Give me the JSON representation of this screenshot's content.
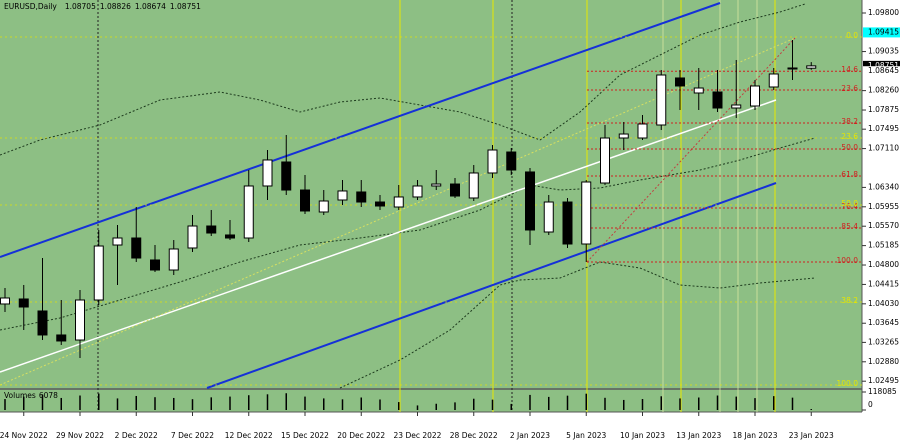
{
  "chart_data": {
    "type": "candlestick",
    "symbol": "EURUSD,Daily",
    "header_values": [
      1.08705,
      1.08826,
      1.08674,
      1.08751
    ],
    "categories": [
      null,
      "24 Nov 2022",
      null,
      null,
      "29 Nov 2022",
      null,
      null,
      "2 Dec 2022",
      null,
      null,
      "7 Dec 2022",
      null,
      null,
      "12 Dec 2022",
      null,
      null,
      "15 Dec 2022",
      null,
      null,
      "20 Dec 2022",
      null,
      null,
      "23 Dec 2022",
      null,
      null,
      "28 Dec 2022",
      null,
      null,
      "2 Jan 2023",
      null,
      null,
      "5 Jan 2023",
      null,
      null,
      "10 Jan 2023",
      null,
      null,
      "13 Jan 2023",
      null,
      null,
      "18 Jan 2023",
      null,
      null,
      "23 Jan 2023"
    ],
    "open": [
      1.04027,
      1.04126,
      1.03888,
      1.03412,
      1.03312,
      1.04106,
      1.05197,
      1.05336,
      1.049,
      1.04701,
      1.05138,
      1.05574,
      1.05396,
      1.05336,
      1.06368,
      1.06844,
      1.06288,
      1.05852,
      1.0609,
      1.06249,
      1.0605,
      1.05951,
      1.0615,
      1.06368,
      1.06407,
      1.0613,
      1.06626,
      1.07042,
      1.06646,
      1.05455,
      1.0605,
      1.05217,
      1.06427,
      1.0732,
      1.0732,
      1.07578,
      1.08511,
      1.08213,
      1.08233,
      1.07915,
      1.07955,
      1.08332,
      1.08689,
      1.08705
    ],
    "high": [
      1.04344,
      1.04404,
      1.04939,
      1.04106,
      1.04304,
      1.05495,
      1.05594,
      1.05951,
      1.05197,
      1.05296,
      1.05792,
      1.05892,
      1.05693,
      1.06685,
      1.07082,
      1.0738,
      1.06586,
      1.06288,
      1.06487,
      1.06487,
      1.06189,
      1.06388,
      1.06487,
      1.06685,
      1.06527,
      1.06784,
      1.07181,
      1.07122,
      1.06725,
      1.06189,
      1.0613,
      1.06487,
      1.07578,
      1.07638,
      1.07776,
      1.08669,
      1.08669,
      1.08709,
      1.08669,
      1.08868,
      1.08471,
      1.08709,
      1.09264,
      1.08826
    ],
    "low": [
      1.03868,
      1.03511,
      1.03312,
      1.03213,
      1.02955,
      1.04007,
      1.04404,
      1.0486,
      1.04662,
      1.04602,
      1.05058,
      1.05376,
      1.05296,
      1.05257,
      1.0609,
      1.06189,
      1.05812,
      1.05792,
      1.05991,
      1.05951,
      1.05892,
      1.05892,
      1.0609,
      1.06288,
      1.0613,
      1.0607,
      1.06527,
      1.06586,
      1.05197,
      1.05396,
      1.05138,
      1.0486,
      1.06388,
      1.07082,
      1.0728,
      1.07479,
      1.07876,
      1.07876,
      1.07836,
      1.07717,
      1.07876,
      1.08272,
      1.08471,
      1.08674
    ],
    "close": [
      1.04146,
      1.03967,
      1.03412,
      1.03293,
      1.04106,
      1.05177,
      1.05336,
      1.04939,
      1.04701,
      1.05118,
      1.05574,
      1.05435,
      1.05336,
      1.06368,
      1.06884,
      1.06288,
      1.05872,
      1.0607,
      1.06269,
      1.0605,
      1.05971,
      1.0615,
      1.06368,
      1.06407,
      1.06169,
      1.06626,
      1.07082,
      1.06685,
      1.05495,
      1.0605,
      1.05217,
      1.06447,
      1.0732,
      1.07399,
      1.07598,
      1.0857,
      1.08352,
      1.08312,
      1.07915,
      1.07975,
      1.08352,
      1.0859,
      1.08709,
      1.08751
    ],
    "up_color": "#ffffff",
    "down_color": "#000000",
    "ylim": [
      1.0236,
      1.10058
    ],
    "yticks": [
      {
        "value": 1.098,
        "label": "1.09800"
      },
      {
        "value": 1.09035,
        "label": "1.09035"
      },
      {
        "value": 1.0826,
        "label": "1.08260"
      },
      {
        "value": 1.07875,
        "label": "1.07875"
      },
      {
        "value": 1.07495,
        "label": "1.07495"
      },
      {
        "value": 1.0711,
        "label": "1.07110"
      },
      {
        "value": 1.0634,
        "label": "1.06340"
      },
      {
        "value": 1.05955,
        "label": "1.05955"
      },
      {
        "value": 1.0557,
        "label": "1.05570"
      },
      {
        "value": 1.05185,
        "label": "1.05185"
      },
      {
        "value": 1.048,
        "label": "1.04800"
      },
      {
        "value": 1.04415,
        "label": "1.04415"
      },
      {
        "value": 1.0403,
        "label": "1.04030"
      },
      {
        "value": 1.03645,
        "label": "1.03645"
      },
      {
        "value": 1.03265,
        "label": "1.03265"
      },
      {
        "value": 1.0288,
        "label": "1.02880"
      },
      {
        "value": 1.02495,
        "label": "1.02495"
      }
    ],
    "price_markers": [
      {
        "value": 1.09415,
        "label": "1.09415",
        "color": "#00ffff",
        "text_color": "#000000"
      },
      {
        "value": 1.08751,
        "label": "1.08751",
        "color": "#000000",
        "text_color": "#ffffff"
      },
      {
        "value": 1.08645,
        "label": "1.08645",
        "color": "#ffffff",
        "text_color": "#000000"
      }
    ],
    "fibo_levels": [
      {
        "label": "14.6",
        "value": 1.08645
      },
      {
        "label": "23.6",
        "value": 1.08272
      },
      {
        "label": "38.2",
        "value": 1.07618
      },
      {
        "label": "50.0",
        "value": 1.07102
      },
      {
        "label": "61.8",
        "value": 1.06566
      },
      {
        "label": "76.4",
        "value": 1.05931
      },
      {
        "label": "85.4",
        "value": 1.05535
      },
      {
        "label": "100.0",
        "value": 1.0486
      }
    ],
    "fibo_color": "#d02020",
    "guide_levels": [
      {
        "label": "0.0",
        "value": 1.09324
      },
      {
        "label": "23.6",
        "value": 1.0732
      },
      {
        "label": "50.0",
        "value": 1.05991
      },
      {
        "label": "38.2",
        "value": 1.04066
      },
      {
        "label": "100.0",
        "value": 1.0242
      }
    ],
    "guide_color": "#e6e600",
    "volume_title": "Volumes",
    "volumes": [
      72000,
      88000,
      101000,
      79000,
      95000,
      108000,
      76000,
      92000,
      84000,
      79000,
      71000,
      83000,
      88000,
      97000,
      103000,
      110000,
      88000,
      76000,
      70000,
      82000,
      69000,
      52000,
      30000,
      41000,
      50000,
      74000,
      68000,
      40000,
      99000,
      86000,
      94000,
      107000,
      80000,
      66000,
      72000,
      90000,
      76000,
      82000,
      95000,
      88000,
      78000,
      91000,
      81000,
      6078
    ],
    "volume_ylim": [
      0,
      118085
    ],
    "volume_yticks": [
      0,
      118085
    ],
    "volume_color": "#000000"
  }
}
